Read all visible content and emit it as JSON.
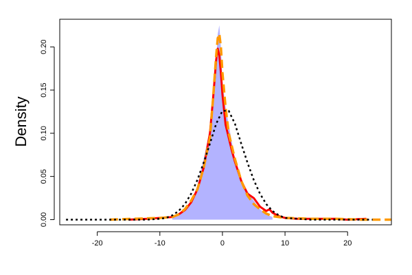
{
  "chart_data": {
    "type": "line",
    "title": "",
    "xlabel": "",
    "ylabel": "Density",
    "xlim": [
      -26,
      27
    ],
    "ylim": [
      -0.006,
      0.232
    ],
    "x_ticks": [
      -20,
      -10,
      0,
      10,
      20
    ],
    "x_tick_labels": [
      "-20",
      "-10",
      "0",
      "10",
      "20"
    ],
    "y_ticks": [
      0.0,
      0.05,
      0.1,
      0.15,
      0.2
    ],
    "y_tick_labels": [
      "0.00",
      "0.05",
      "0.10",
      "0.15",
      "0.20"
    ],
    "grid": false,
    "legend": "none",
    "series": [
      {
        "style": "filled-area",
        "color": "#b3b3ff",
        "x": [
          -8,
          -7,
          -6,
          -5,
          -4,
          -3,
          -2,
          -1.5,
          -1,
          -0.75,
          -0.5,
          -0.25,
          0,
          0.5,
          1,
          1.5,
          2,
          3,
          4,
          5,
          6,
          7,
          8
        ],
        "y": [
          0.003,
          0.005,
          0.01,
          0.02,
          0.04,
          0.07,
          0.105,
          0.14,
          0.185,
          0.215,
          0.225,
          0.2,
          0.16,
          0.13,
          0.11,
          0.09,
          0.07,
          0.045,
          0.033,
          0.022,
          0.012,
          0.006,
          0.003
        ]
      },
      {
        "style": "solid",
        "color": "#ff0000",
        "x": [
          -15,
          -12,
          -10,
          -8,
          -7,
          -6,
          -5,
          -4,
          -3,
          -2,
          -1.5,
          -1,
          -0.75,
          -0.5,
          -0.25,
          0,
          0.5,
          1,
          1.5,
          2,
          3,
          4,
          5,
          6,
          7,
          7.5,
          8,
          9,
          10,
          12,
          15,
          18,
          20,
          23
        ],
        "y": [
          0.0,
          0.001,
          0.002,
          0.003,
          0.006,
          0.011,
          0.02,
          0.035,
          0.06,
          0.1,
          0.14,
          0.185,
          0.198,
          0.19,
          0.17,
          0.145,
          0.11,
          0.095,
          0.08,
          0.067,
          0.045,
          0.03,
          0.025,
          0.015,
          0.01,
          0.012,
          0.008,
          0.004,
          0.002,
          0.001,
          0.001,
          0.001,
          0.0,
          0.001
        ]
      },
      {
        "style": "dashed",
        "color": "#ff9900",
        "x": [
          -18,
          -14,
          -10,
          -8,
          -7,
          -6,
          -5,
          -4,
          -3,
          -2,
          -1.5,
          -1,
          -0.75,
          -0.5,
          -0.25,
          0,
          0.5,
          1,
          1.5,
          2,
          3,
          4,
          5,
          6,
          7,
          8,
          10,
          14,
          18,
          22,
          27
        ],
        "y": [
          0.0,
          0.001,
          0.002,
          0.003,
          0.006,
          0.012,
          0.022,
          0.035,
          0.06,
          0.095,
          0.14,
          0.19,
          0.21,
          0.215,
          0.2,
          0.17,
          0.13,
          0.1,
          0.085,
          0.07,
          0.045,
          0.028,
          0.018,
          0.012,
          0.007,
          0.004,
          0.002,
          0.001,
          0.001,
          0.0,
          0.0
        ]
      },
      {
        "style": "dotted",
        "color": "#000000",
        "x": [
          -25,
          -20,
          -16,
          -14,
          -12,
          -10,
          -9,
          -8,
          -7,
          -6,
          -5,
          -4,
          -3,
          -2,
          -1,
          0,
          1,
          2,
          3,
          4,
          5,
          6,
          7,
          8,
          9,
          10,
          12,
          14,
          16,
          20,
          24
        ],
        "y": [
          0.0,
          0.0,
          0.0,
          0.0,
          0.0,
          0.001,
          0.002,
          0.005,
          0.01,
          0.018,
          0.03,
          0.046,
          0.066,
          0.088,
          0.111,
          0.126,
          0.126,
          0.111,
          0.088,
          0.066,
          0.046,
          0.03,
          0.018,
          0.01,
          0.005,
          0.002,
          0.001,
          0.0,
          0.0,
          0.0,
          0.0
        ]
      }
    ]
  }
}
